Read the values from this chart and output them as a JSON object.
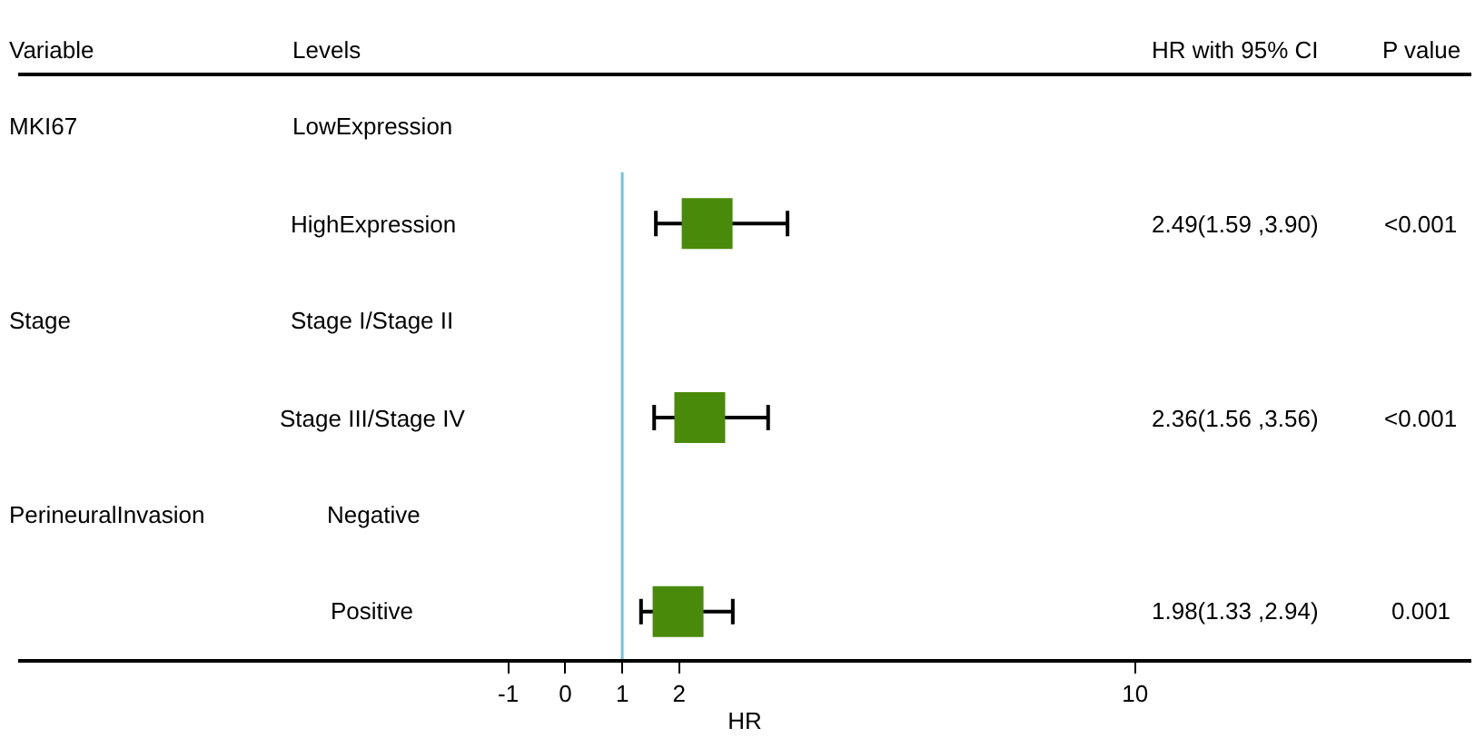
{
  "chart_data": {
    "type": "scatter",
    "orientation": "horizontal",
    "marker": "square",
    "color": "#4a8a0a",
    "xlabel": "HR",
    "categories": [
      "LowExpression",
      "HighExpression",
      "Stage I/Stage II",
      "Stage III/Stage IV",
      "Negative",
      "Positive"
    ],
    "values": [
      null,
      2.49,
      null,
      2.36,
      null,
      1.98
    ],
    "errors": [
      null,
      [
        1.59,
        3.9
      ],
      null,
      [
        1.56,
        3.56
      ],
      null,
      [
        1.33,
        2.94
      ]
    ],
    "xlim": [
      -9.6,
      15.9
    ],
    "xticks": [
      -1,
      0,
      1,
      2,
      10
    ],
    "ref_lines": [
      {
        "axis": "x",
        "value": 1,
        "color": "#6ec6d8"
      }
    ],
    "annotations": [
      {
        "text": "Variable"
      },
      {
        "text": "Levels"
      },
      {
        "text": "HR with 95% CI"
      },
      {
        "text": "P value"
      },
      {
        "text": "MKI67"
      },
      {
        "text": "Stage"
      },
      {
        "text": "PerineuralInvasion"
      },
      {
        "text": "2.49(1.59 ,3.90)"
      },
      {
        "text": "2.36(1.56 ,3.56)"
      },
      {
        "text": "1.98(1.33 ,2.94)"
      },
      {
        "text": "<0.001"
      },
      {
        "text": "<0.001"
      },
      {
        "text": "0.001"
      }
    ],
    "legend": false,
    "tick_labels": "x"
  }
}
